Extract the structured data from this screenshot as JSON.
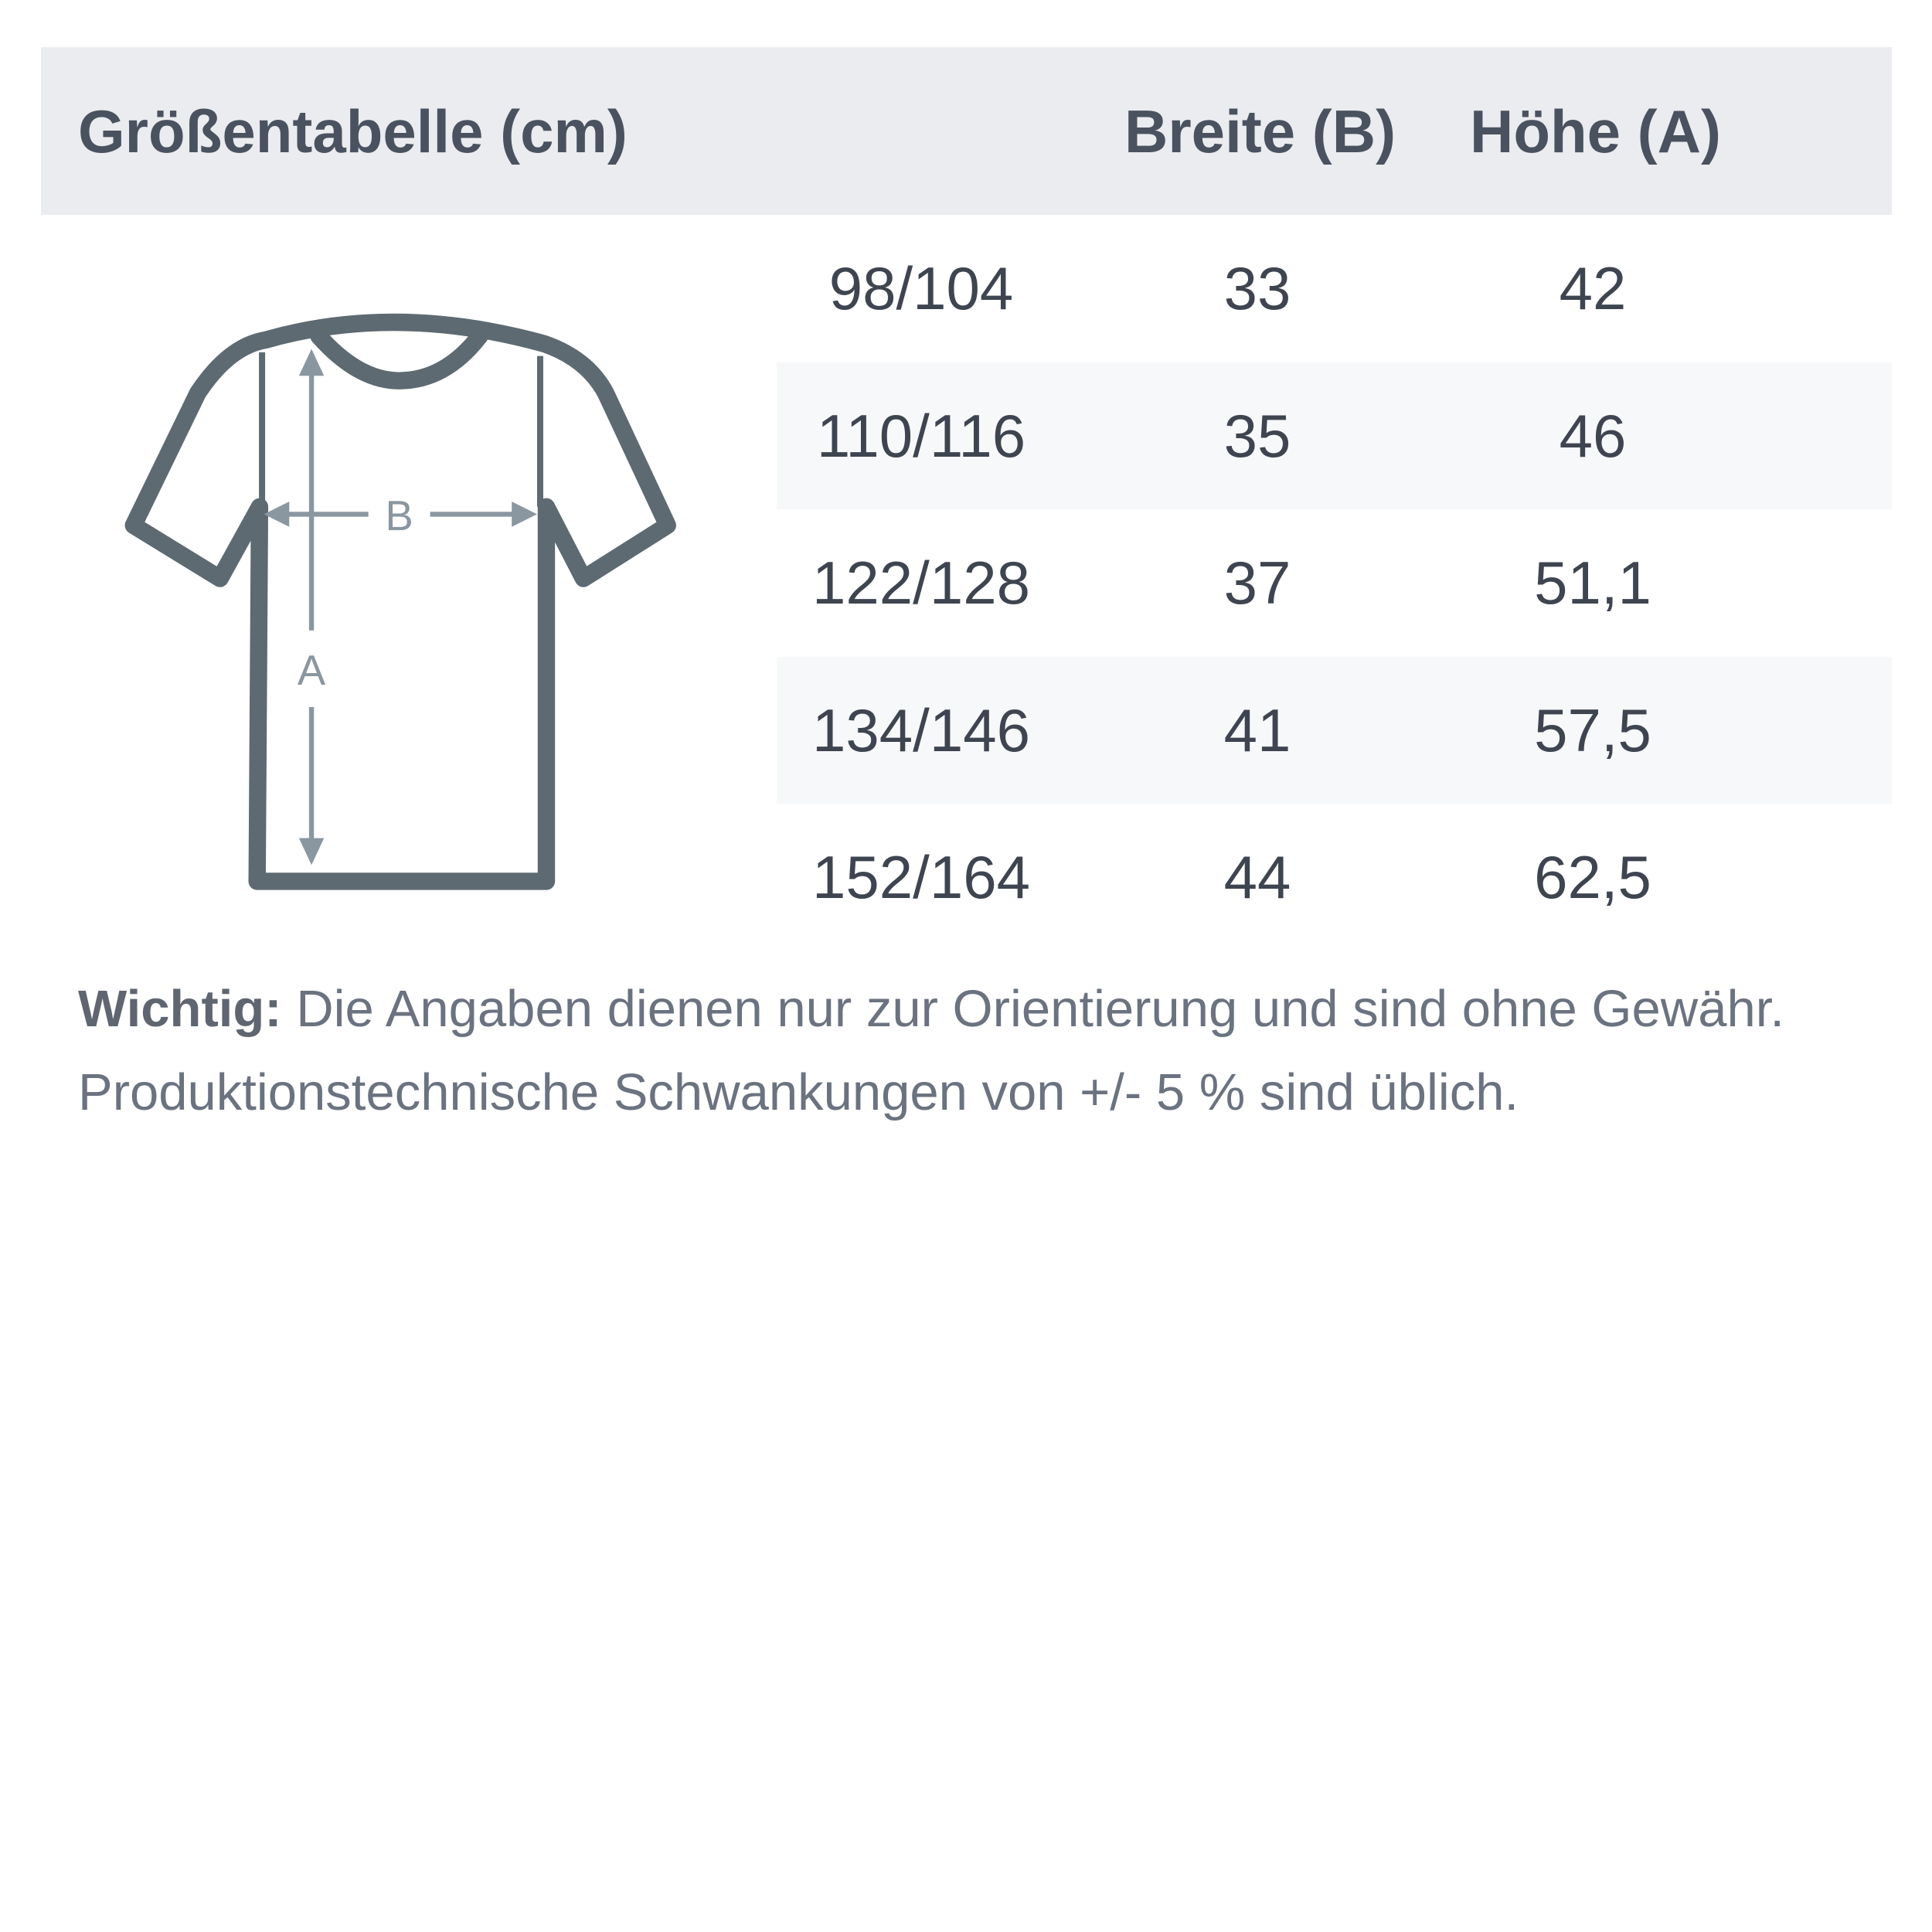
{
  "header": {
    "title": "Größentabelle (cm)",
    "col_width": "Breite (B)",
    "col_height": "Höhe (A)"
  },
  "rows": [
    {
      "size": "98/104",
      "width": "33",
      "height": "42"
    },
    {
      "size": "110/116",
      "width": "35",
      "height": "46"
    },
    {
      "size": "122/128",
      "width": "37",
      "height": "51,1"
    },
    {
      "size": "134/146",
      "width": "41",
      "height": "57,5"
    },
    {
      "size": "152/164",
      "width": "44",
      "height": "62,5"
    }
  ],
  "diagram": {
    "label_b": "B",
    "label_a": "A"
  },
  "note": {
    "bold": "Wichtig:",
    "line1": "Die Angaben dienen nur zur Orientierung und sind ohne Gewähr.",
    "line2": "Produktionstechnische Schwankungen von +/- 5 % sind üblich."
  },
  "colors": {
    "header_bg": "#ebecef",
    "shirt_outline": "#5d6a71",
    "arrows": "#8a96a0"
  }
}
